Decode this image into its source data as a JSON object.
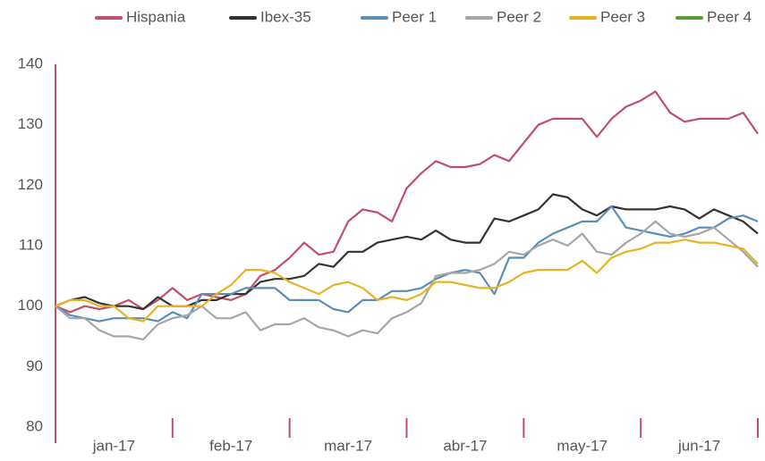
{
  "chart_data": {
    "type": "line",
    "categories": [
      null,
      null,
      null,
      null,
      "jan-17",
      null,
      null,
      null,
      null,
      null,
      null,
      null,
      "feb-17",
      null,
      null,
      null,
      null,
      null,
      null,
      null,
      "mar-17",
      null,
      null,
      null,
      null,
      null,
      null,
      null,
      "abr-17",
      null,
      null,
      null,
      null,
      null,
      null,
      null,
      "may-17",
      null,
      null,
      null,
      null,
      null,
      null,
      null,
      "jun-17",
      null,
      null,
      null,
      null
    ],
    "series": [
      {
        "name": "Hispania",
        "color": "#c0506a",
        "values": [
          100,
          99,
          100,
          99.5,
          100,
          101,
          99.5,
          101,
          103,
          101,
          102,
          101.5,
          101,
          102,
          105,
          106,
          108,
          110.5,
          108.5,
          109,
          114,
          116,
          115.5,
          114,
          119.5,
          122,
          124,
          123,
          123,
          123.5,
          125,
          124,
          127,
          130,
          131,
          131,
          131,
          128,
          131,
          133,
          134,
          135.5,
          132,
          130.5,
          131,
          131,
          131,
          132,
          128.5
        ]
      },
      {
        "name": "Ibex-35",
        "color": "#333333",
        "values": [
          100,
          101,
          101.5,
          100.5,
          100,
          100,
          99.5,
          101.5,
          100,
          100,
          101,
          101,
          102,
          102,
          104,
          104.5,
          104.5,
          105,
          107,
          106.5,
          109,
          109,
          110.5,
          111,
          111.5,
          111,
          112.5,
          111,
          110.5,
          110.5,
          114.5,
          114,
          115,
          116,
          118.5,
          118,
          116,
          115,
          116.5,
          116,
          116,
          116,
          116.5,
          116,
          114.5,
          116,
          115,
          114,
          112
        ]
      },
      {
        "name": "Peer 1",
        "color": "#5b8db8",
        "values": [
          100,
          98.5,
          98,
          97.5,
          98,
          98,
          98,
          97.5,
          99,
          98,
          102,
          102,
          102,
          103,
          103,
          103,
          101,
          101,
          101,
          99.5,
          99,
          101,
          101,
          102.5,
          102.5,
          103,
          104.5,
          105.5,
          106,
          105.5,
          102,
          108,
          108,
          110.5,
          112,
          113,
          114,
          114,
          116.5,
          113,
          112.5,
          112,
          111.5,
          112,
          113,
          113,
          114.5,
          115,
          114
        ]
      },
      {
        "name": "Peer 2",
        "color": "#a6a6a6",
        "values": [
          100,
          98,
          98,
          96,
          95,
          95,
          94.5,
          97,
          98,
          98.5,
          100,
          98,
          98,
          99,
          96,
          97,
          97,
          98,
          96.5,
          96,
          95,
          96,
          95.5,
          98,
          99,
          100.5,
          105,
          105.5,
          105.5,
          106,
          107,
          109,
          108.5,
          110,
          111,
          110,
          112,
          109,
          108.5,
          110.5,
          112,
          114,
          112,
          111.5,
          112,
          113,
          111,
          109,
          106.5
        ]
      },
      {
        "name": "Peer 3",
        "color": "#e6b422",
        "values": [
          100,
          101,
          101,
          100,
          100,
          98,
          97.5,
          100,
          100,
          100,
          100,
          102,
          103.5,
          106,
          106,
          105.5,
          104,
          103,
          102,
          103.5,
          104,
          103,
          101,
          101.5,
          101,
          102,
          104,
          104,
          103.5,
          103,
          103,
          104,
          105.5,
          106,
          106,
          106,
          107.5,
          105.5,
          108,
          109,
          109.5,
          110.5,
          110.5,
          111,
          110.5,
          110.5,
          110,
          109.5,
          107
        ]
      },
      {
        "name": "Peer 4",
        "color": "#5a9e3a",
        "values": [
          null,
          null,
          null,
          null,
          null,
          null,
          null,
          null,
          null,
          null,
          null,
          null,
          null,
          null,
          null,
          null,
          null,
          null,
          null,
          null,
          null,
          null,
          null,
          null,
          null,
          null,
          null,
          null,
          null,
          null,
          null,
          null,
          null,
          null,
          null,
          null,
          null,
          null,
          null,
          null,
          null,
          null,
          null,
          null,
          null,
          null,
          null,
          null,
          null
        ]
      }
    ],
    "ylim": [
      80,
      140
    ],
    "yticks": [
      80,
      90,
      100,
      110,
      120,
      130,
      140
    ],
    "axis_color": "#c0506a"
  }
}
